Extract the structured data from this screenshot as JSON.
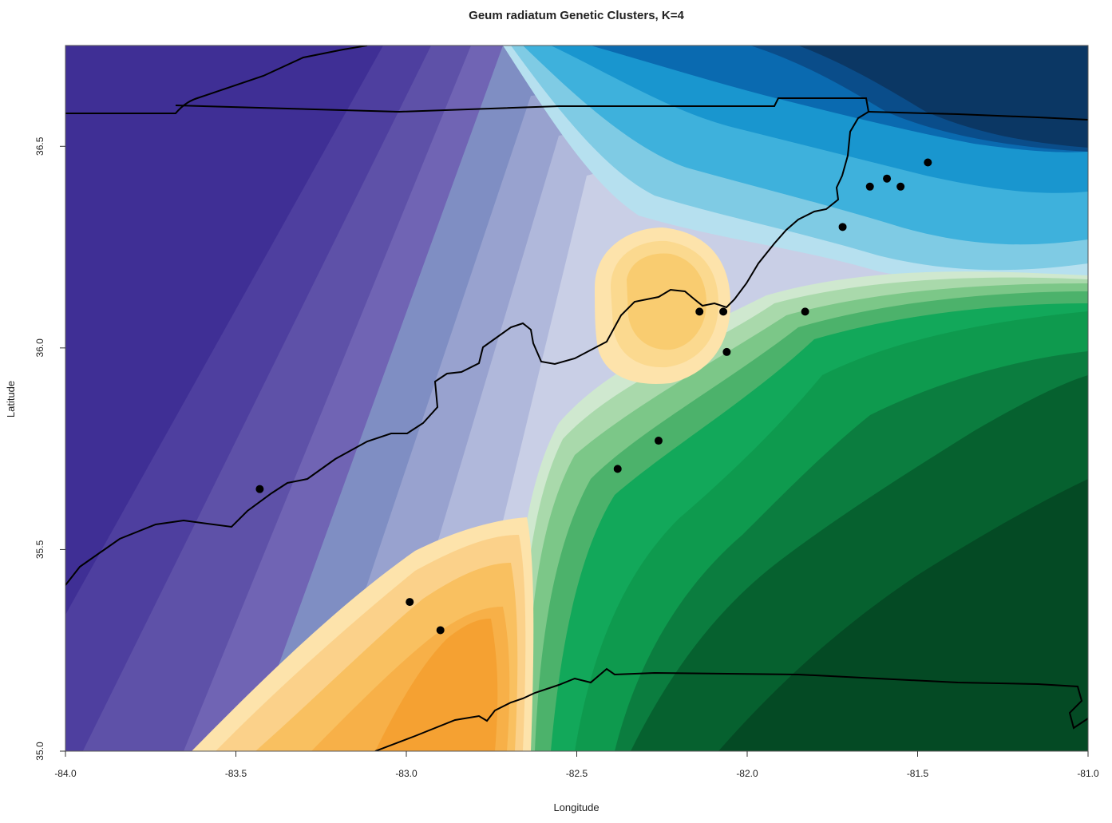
{
  "chart_data": {
    "type": "contour-map",
    "title": "Geum radiatum Genetic Clusters, K=4",
    "xlabel": "Longitude",
    "ylabel": "Latitude",
    "xlim": [
      -84.0,
      -81.0
    ],
    "ylim": [
      35.0,
      36.75
    ],
    "x_ticks": [
      {
        "value": -84.0,
        "label": "-84.0"
      },
      {
        "value": -83.5,
        "label": "-83.5"
      },
      {
        "value": -83.0,
        "label": "-83.0"
      },
      {
        "value": -82.5,
        "label": "-82.5"
      },
      {
        "value": -82.0,
        "label": "-82.0"
      },
      {
        "value": -81.5,
        "label": "-81.5"
      },
      {
        "value": -81.0,
        "label": "-81.0"
      }
    ],
    "y_ticks": [
      {
        "value": 35.0,
        "label": "35.0"
      },
      {
        "value": 35.5,
        "label": "35.5"
      },
      {
        "value": 36.0,
        "label": "36.0"
      },
      {
        "value": 36.5,
        "label": "36.5"
      }
    ],
    "clusters": [
      {
        "name": "cluster-purple",
        "color": "#3f2f95"
      },
      {
        "name": "cluster-blue",
        "color": "#0a6ab0"
      },
      {
        "name": "cluster-orange",
        "color": "#f5a132"
      },
      {
        "name": "cluster-green",
        "color": "#0e9a4e"
      }
    ],
    "sample_points": [
      {
        "x": -83.43,
        "y": 35.65
      },
      {
        "x": -82.99,
        "y": 35.37
      },
      {
        "x": -82.9,
        "y": 35.3
      },
      {
        "x": -82.38,
        "y": 35.7
      },
      {
        "x": -82.26,
        "y": 35.77
      },
      {
        "x": -82.14,
        "y": 36.09
      },
      {
        "x": -82.07,
        "y": 36.09
      },
      {
        "x": -82.06,
        "y": 35.99
      },
      {
        "x": -81.83,
        "y": 36.09
      },
      {
        "x": -81.72,
        "y": 36.3
      },
      {
        "x": -81.64,
        "y": 36.4
      },
      {
        "x": -81.59,
        "y": 36.42
      },
      {
        "x": -81.55,
        "y": 36.4
      },
      {
        "x": -81.47,
        "y": 36.46
      }
    ]
  }
}
